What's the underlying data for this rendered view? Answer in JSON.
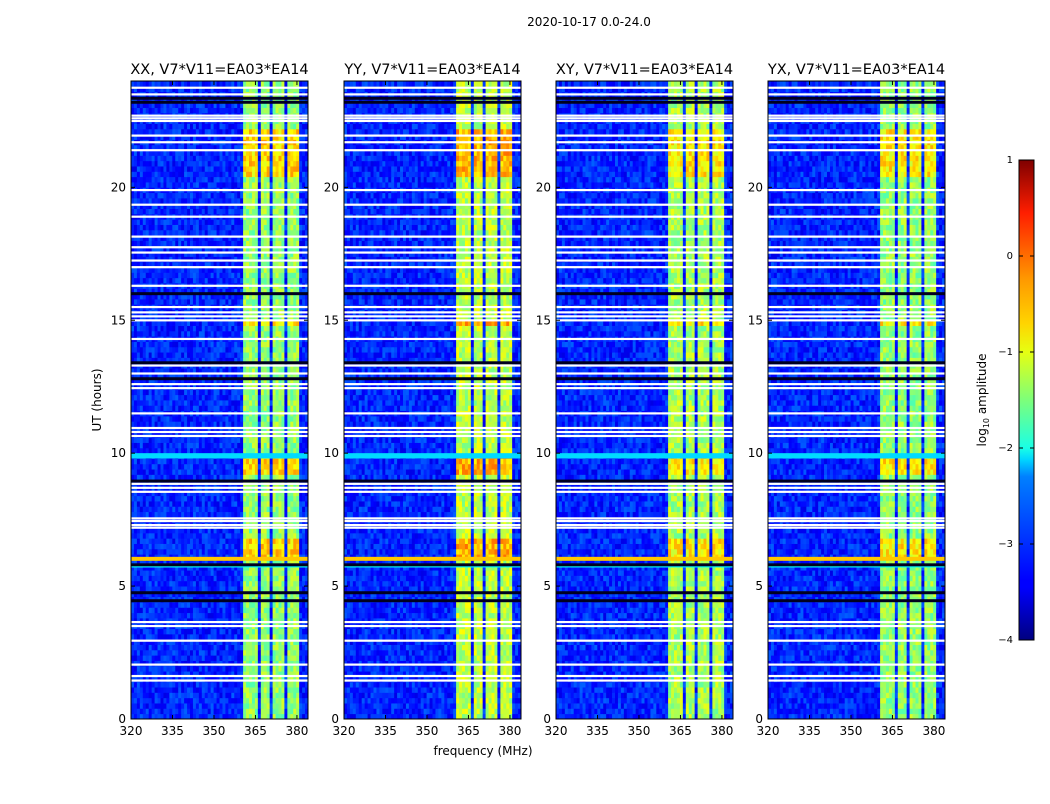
{
  "chart_data": {
    "type": "heatmap",
    "suptitle": "2020-10-17 0.0-24.0",
    "xlabel": "frequency (MHz)",
    "ylabel": "UT (hours)",
    "xlim": [
      320,
      384
    ],
    "ylim": [
      0,
      24
    ],
    "xticks": [
      320,
      335,
      350,
      365,
      380
    ],
    "yticks": [
      0,
      5,
      10,
      15,
      20
    ],
    "panels": [
      {
        "title": "XX, V7*V11=EA03*EA14",
        "band_level": -1.4,
        "strong_level": -0.7
      },
      {
        "title": "YY, V7*V11=EA03*EA14",
        "band_level": -1.2,
        "strong_level": -0.5
      },
      {
        "title": "XY, V7*V11=EA03*EA14",
        "band_level": -1.3,
        "strong_level": -0.8
      },
      {
        "title": "YX, V7*V11=EA03*EA14",
        "band_level": -1.4,
        "strong_level": -0.8
      }
    ],
    "background_level": -3.2,
    "signal_bands_mhz": [
      [
        361,
        365.5
      ],
      [
        366.5,
        370.5
      ],
      [
        371.5,
        375.5
      ],
      [
        376.5,
        380.5
      ]
    ],
    "strong_periods_ut": [
      [
        6.1,
        6.9
      ],
      [
        9.2,
        10.0
      ],
      [
        20.5,
        22.3
      ],
      [
        14.8,
        15.1
      ]
    ],
    "broadband_rfi_ut": [
      [
        5.95,
        6.1,
        -0.6
      ],
      [
        5.7,
        5.85,
        -2.1
      ],
      [
        9.8,
        10.0,
        -2.3
      ]
    ],
    "flagged_white_ut": [
      1.45,
      1.62,
      2.05,
      2.95,
      3.5,
      3.65,
      7.2,
      7.3,
      7.45,
      7.55,
      8.55,
      8.7,
      8.85,
      10.65,
      10.8,
      10.95,
      11.5,
      12.45,
      12.6,
      13.0,
      13.3,
      14.3,
      15.0,
      15.15,
      15.3,
      15.5,
      16.3,
      17.0,
      17.25,
      17.55,
      17.75,
      18.15,
      18.9,
      19.35,
      19.9,
      21.4,
      21.7,
      21.95,
      22.5,
      22.6,
      22.7,
      23.5,
      23.75
    ],
    "flagged_black_ut": [
      4.45,
      4.75,
      5.8,
      8.95,
      12.8,
      13.4,
      16.0,
      23.2,
      23.35
    ],
    "colorbar": {
      "label": "log10 amplitude",
      "label_main": "log",
      "label_sub": "10",
      "label_rest": " amplitude",
      "range": [
        -4,
        1
      ],
      "ticks": [
        "1",
        "0",
        "−1",
        "−2",
        "−3",
        "−4"
      ],
      "tick_values": [
        1,
        0,
        -1,
        -2,
        -3,
        -4
      ],
      "colormap": "jet"
    }
  }
}
